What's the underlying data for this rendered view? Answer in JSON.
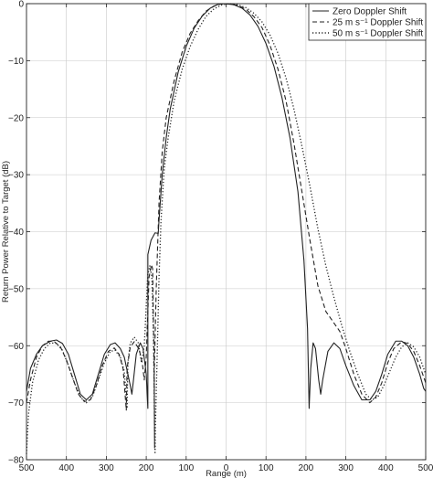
{
  "chart_data": {
    "type": "line",
    "xlabel": "Range (m)",
    "ylabel": "Return Power Relative to Target (dB)",
    "xlim": [
      -500,
      500
    ],
    "ylim": [
      -80,
      0
    ],
    "x_tick_values": [
      -500,
      -400,
      -300,
      -200,
      -100,
      0,
      100,
      200,
      300,
      400,
      500
    ],
    "x_tick_labels": [
      "500",
      "400",
      "300",
      "200",
      "100",
      "0",
      "100",
      "200",
      "300",
      "400",
      "500"
    ],
    "y_tick_values": [
      -80,
      -70,
      -60,
      -50,
      -40,
      -30,
      -20,
      -10,
      0
    ],
    "y_tick_labels": [
      "−80",
      "−70",
      "−60",
      "−50",
      "−40",
      "−30",
      "−20",
      "−10",
      "0"
    ],
    "grid": true,
    "legend_position": "top-right",
    "series": [
      {
        "name": "Zero Doppler Shift",
        "style": "solid",
        "color": "#222222",
        "points": [
          [
            -500,
            -68
          ],
          [
            -490,
            -64
          ],
          [
            -475,
            -61.5
          ],
          [
            -460,
            -60
          ],
          [
            -440,
            -59.2
          ],
          [
            -425,
            -59
          ],
          [
            -410,
            -59.6
          ],
          [
            -395,
            -61.5
          ],
          [
            -380,
            -65
          ],
          [
            -365,
            -68.5
          ],
          [
            -350,
            -69.5
          ],
          [
            -335,
            -68.5
          ],
          [
            -320,
            -65
          ],
          [
            -305,
            -61.5
          ],
          [
            -290,
            -59.8
          ],
          [
            -278,
            -59.5
          ],
          [
            -265,
            -60.5
          ],
          [
            -255,
            -62
          ],
          [
            -240,
            -67
          ],
          [
            -236,
            -68.5
          ],
          [
            -232,
            -66
          ],
          [
            -225,
            -61.5
          ],
          [
            -215,
            -59.5
          ],
          [
            -208,
            -60.5
          ],
          [
            -200,
            -65
          ],
          [
            -196,
            -71
          ],
          [
            -196,
            -44
          ],
          [
            -188,
            -41.5
          ],
          [
            -178,
            -40.2
          ],
          [
            -170,
            -40.3
          ],
          [
            -168,
            -38
          ],
          [
            -160,
            -30
          ],
          [
            -150,
            -23.5
          ],
          [
            -140,
            -18.5
          ],
          [
            -120,
            -12
          ],
          [
            -100,
            -7.5
          ],
          [
            -80,
            -4.3
          ],
          [
            -60,
            -2.2
          ],
          [
            -40,
            -0.8
          ],
          [
            -20,
            -0.1
          ],
          [
            0,
            0
          ],
          [
            20,
            -0.2
          ],
          [
            40,
            -0.8
          ],
          [
            60,
            -2
          ],
          [
            80,
            -4
          ],
          [
            100,
            -7
          ],
          [
            120,
            -11
          ],
          [
            140,
            -16.5
          ],
          [
            160,
            -23.5
          ],
          [
            180,
            -33
          ],
          [
            195,
            -45
          ],
          [
            204,
            -57
          ],
          [
            208,
            -71
          ],
          [
            212,
            -64
          ],
          [
            218,
            -59.5
          ],
          [
            224,
            -60.5
          ],
          [
            232,
            -66
          ],
          [
            237,
            -68.5
          ],
          [
            242,
            -66
          ],
          [
            255,
            -61
          ],
          [
            270,
            -59.5
          ],
          [
            285,
            -60.5
          ],
          [
            300,
            -63.5
          ],
          [
            320,
            -67
          ],
          [
            340,
            -69.5
          ],
          [
            360,
            -69.5
          ],
          [
            375,
            -68
          ],
          [
            390,
            -65
          ],
          [
            405,
            -61.5
          ],
          [
            425,
            -59.2
          ],
          [
            440,
            -59.2
          ],
          [
            455,
            -60
          ],
          [
            470,
            -62
          ],
          [
            485,
            -65
          ],
          [
            495,
            -67.5
          ],
          [
            500,
            -68
          ]
        ]
      },
      {
        "name": "25 m s⁻¹ Doppler Shift",
        "style": "dashed",
        "color": "#222222",
        "points": [
          [
            -500,
            -70
          ],
          [
            -490,
            -66
          ],
          [
            -475,
            -62
          ],
          [
            -460,
            -60
          ],
          [
            -445,
            -59.2
          ],
          [
            -430,
            -59.3
          ],
          [
            -415,
            -60.2
          ],
          [
            -400,
            -62.5
          ],
          [
            -385,
            -65.5
          ],
          [
            -370,
            -68.5
          ],
          [
            -355,
            -69.8
          ],
          [
            -340,
            -69.5
          ],
          [
            -325,
            -67
          ],
          [
            -310,
            -63.5
          ],
          [
            -295,
            -61
          ],
          [
            -280,
            -60.4
          ],
          [
            -268,
            -61.5
          ],
          [
            -258,
            -64
          ],
          [
            -250,
            -71.3
          ],
          [
            -250,
            -71.3
          ],
          [
            -248,
            -64
          ],
          [
            -240,
            -60.2
          ],
          [
            -230,
            -59.3
          ],
          [
            -218,
            -60.6
          ],
          [
            -210,
            -63
          ],
          [
            -205,
            -66
          ],
          [
            -200,
            -62
          ],
          [
            -193,
            -48
          ],
          [
            -187,
            -45.8
          ],
          [
            -184,
            -46.5
          ],
          [
            -181,
            -60
          ],
          [
            -179,
            -78
          ],
          [
            -180,
            -65
          ],
          [
            -175,
            -50
          ],
          [
            -168,
            -35
          ],
          [
            -160,
            -26
          ],
          [
            -150,
            -20
          ],
          [
            -130,
            -13.5
          ],
          [
            -110,
            -8.5
          ],
          [
            -90,
            -5.2
          ],
          [
            -70,
            -3
          ],
          [
            -50,
            -1.3
          ],
          [
            -30,
            -0.4
          ],
          [
            -10,
            0
          ],
          [
            10,
            -0.1
          ],
          [
            30,
            -0.3
          ],
          [
            50,
            -1
          ],
          [
            70,
            -2.3
          ],
          [
            90,
            -4.2
          ],
          [
            110,
            -7.3
          ],
          [
            130,
            -11.5
          ],
          [
            150,
            -17
          ],
          [
            170,
            -24.5
          ],
          [
            190,
            -33
          ],
          [
            210,
            -41.5
          ],
          [
            230,
            -49.5
          ],
          [
            250,
            -54
          ],
          [
            270,
            -56
          ],
          [
            285,
            -57.5
          ],
          [
            300,
            -60.5
          ],
          [
            320,
            -65
          ],
          [
            340,
            -68.5
          ],
          [
            360,
            -70
          ],
          [
            375,
            -69
          ],
          [
            390,
            -66.5
          ],
          [
            405,
            -63
          ],
          [
            420,
            -60.5
          ],
          [
            440,
            -59.3
          ],
          [
            455,
            -59.6
          ],
          [
            470,
            -61
          ],
          [
            485,
            -63.5
          ],
          [
            500,
            -66.5
          ]
        ]
      },
      {
        "name": "50 m s⁻¹ Doppler Shift",
        "style": "dotted",
        "color": "#222222",
        "points": [
          [
            -500,
            -79
          ],
          [
            -495,
            -72
          ],
          [
            -485,
            -66.5
          ],
          [
            -470,
            -62.5
          ],
          [
            -455,
            -60.5
          ],
          [
            -440,
            -59.5
          ],
          [
            -425,
            -59.6
          ],
          [
            -410,
            -60.8
          ],
          [
            -395,
            -63.5
          ],
          [
            -380,
            -66.5
          ],
          [
            -365,
            -69
          ],
          [
            -350,
            -70
          ],
          [
            -335,
            -69
          ],
          [
            -320,
            -66
          ],
          [
            -305,
            -63
          ],
          [
            -290,
            -61
          ],
          [
            -278,
            -60.8
          ],
          [
            -265,
            -62
          ],
          [
            -255,
            -64.5
          ],
          [
            -248,
            -71
          ],
          [
            -246,
            -63
          ],
          [
            -240,
            -59.5
          ],
          [
            -230,
            -58.5
          ],
          [
            -220,
            -59.5
          ],
          [
            -212,
            -63
          ],
          [
            -205,
            -60
          ],
          [
            -200,
            -53
          ],
          [
            -196,
            -47.5
          ],
          [
            -191,
            -46
          ],
          [
            -186,
            -48
          ],
          [
            -182,
            -58
          ],
          [
            -178,
            -79
          ],
          [
            -177,
            -74
          ],
          [
            -172,
            -60
          ],
          [
            -168,
            -48
          ],
          [
            -163,
            -38
          ],
          [
            -155,
            -29
          ],
          [
            -145,
            -23.5
          ],
          [
            -130,
            -17
          ],
          [
            -110,
            -11.5
          ],
          [
            -90,
            -7.5
          ],
          [
            -70,
            -4.5
          ],
          [
            -50,
            -2.2
          ],
          [
            -30,
            -0.9
          ],
          [
            -10,
            -0.2
          ],
          [
            10,
            0
          ],
          [
            30,
            -0.2
          ],
          [
            50,
            -0.7
          ],
          [
            70,
            -1.7
          ],
          [
            90,
            -3.2
          ],
          [
            110,
            -5.5
          ],
          [
            130,
            -8.7
          ],
          [
            150,
            -13
          ],
          [
            170,
            -18.5
          ],
          [
            190,
            -25
          ],
          [
            210,
            -32
          ],
          [
            230,
            -39.5
          ],
          [
            250,
            -46
          ],
          [
            270,
            -51.5
          ],
          [
            290,
            -56.5
          ],
          [
            310,
            -61
          ],
          [
            330,
            -65
          ],
          [
            350,
            -68.5
          ],
          [
            365,
            -69.5
          ],
          [
            380,
            -69
          ],
          [
            395,
            -67
          ],
          [
            410,
            -64.5
          ],
          [
            425,
            -62
          ],
          [
            440,
            -60.2
          ],
          [
            455,
            -59.5
          ],
          [
            470,
            -60.2
          ],
          [
            485,
            -62
          ],
          [
            500,
            -65
          ]
        ]
      }
    ]
  }
}
